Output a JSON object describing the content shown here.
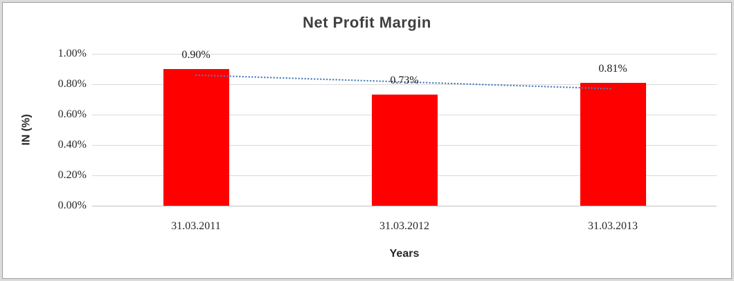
{
  "chart_data": {
    "type": "bar",
    "title": "Net Profit Margin",
    "xlabel": "Years",
    "ylabel": "IN (%)",
    "categories": [
      "31.03.2011",
      "31.03.2012",
      "31.03.2013"
    ],
    "values": [
      0.9,
      0.73,
      0.81
    ],
    "data_labels": [
      "0.90%",
      "0.73%",
      "0.81%"
    ],
    "ylim": [
      0,
      1.0
    ],
    "ytick_labels": [
      "1.00%",
      "0.80%",
      "0.60%",
      "0.40%",
      "0.20%",
      "0.00%"
    ],
    "grid": true,
    "legend": "none",
    "bar_color": "#ff0000",
    "gridline_color": "#d9d9d9",
    "trendline": {
      "style": "dotted",
      "color": "#4a7ebd",
      "start_value": 0.86,
      "end_value": 0.77
    }
  }
}
